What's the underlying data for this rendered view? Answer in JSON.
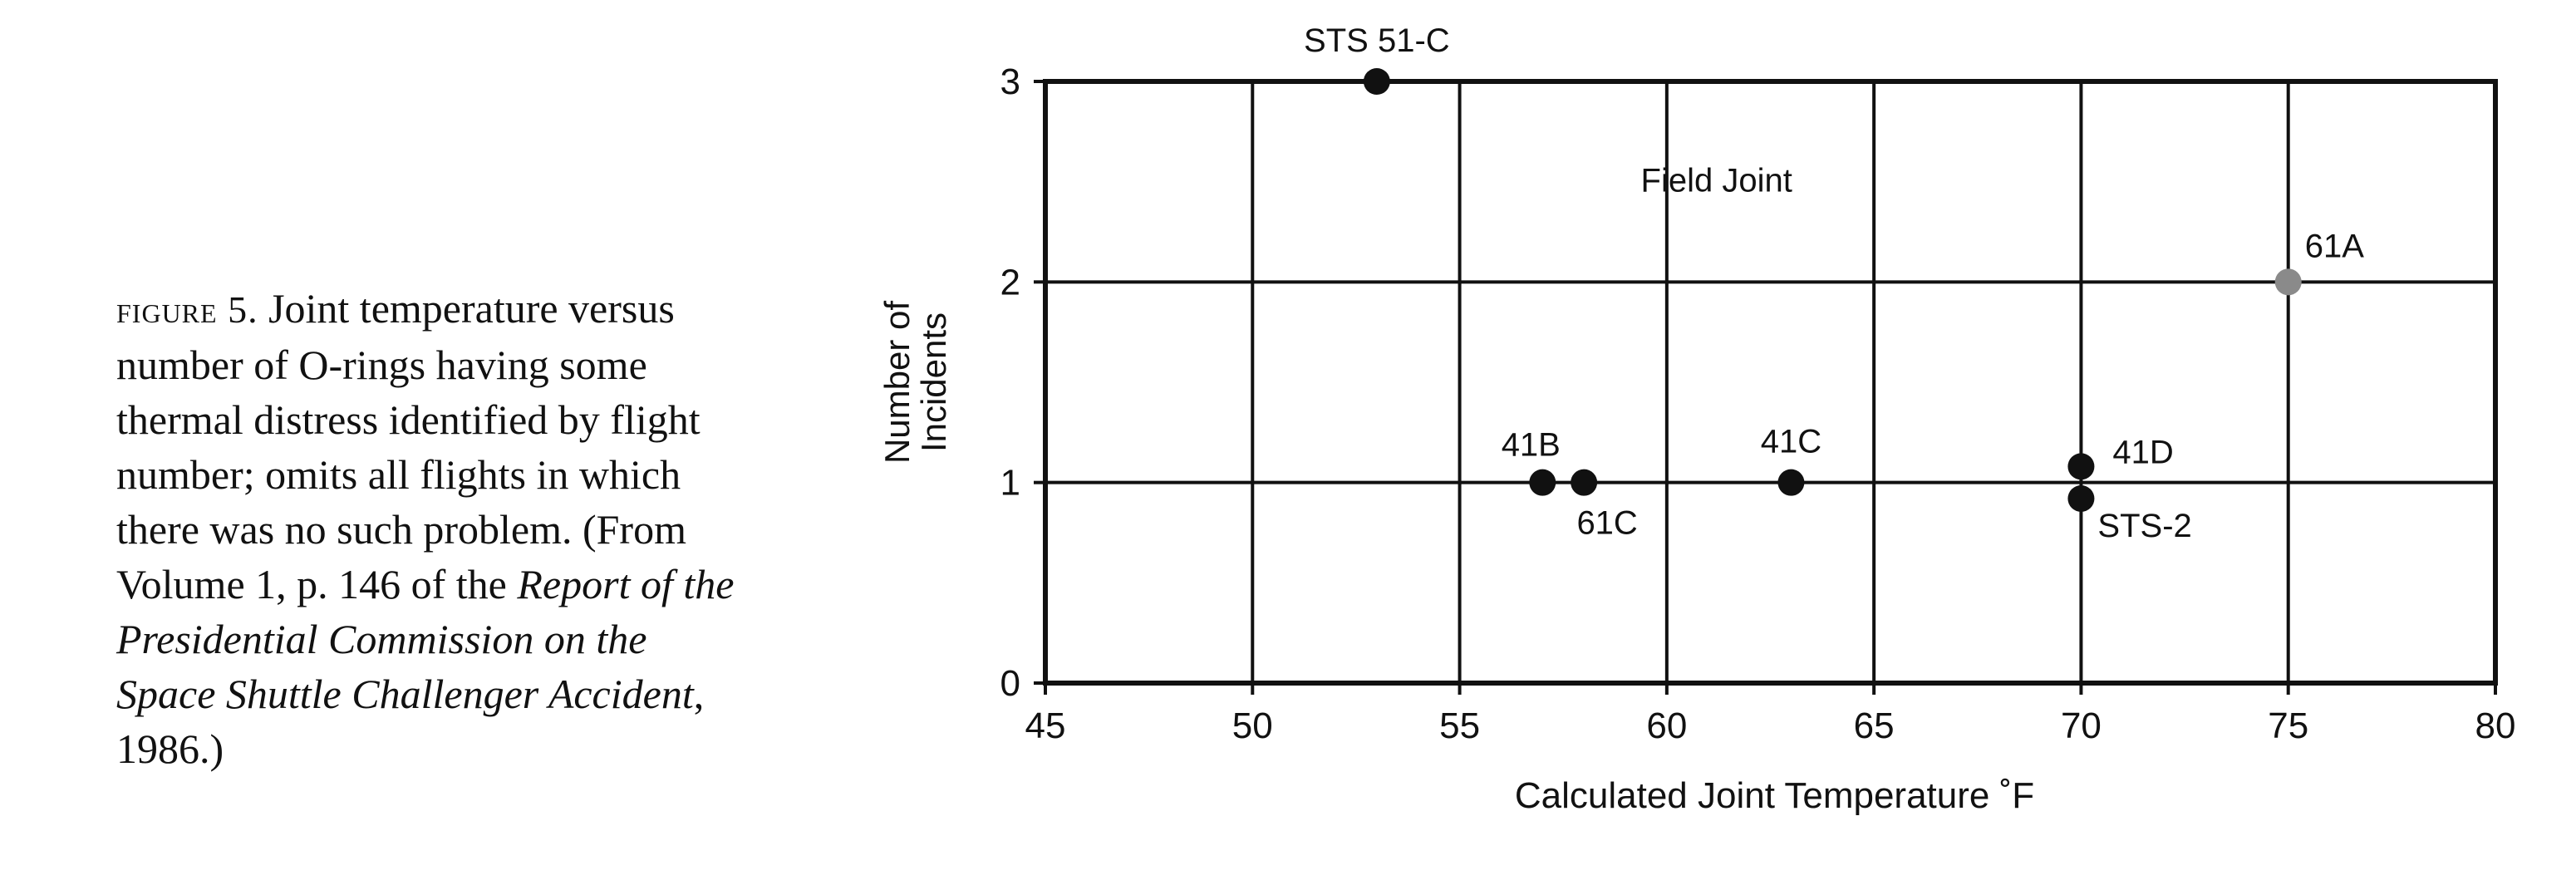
{
  "caption": {
    "lead": "figure 5.",
    "text1": " Joint temperature versus number of O-rings having some thermal distress identified by flight number; omits all flights in which there was no such problem. (From Volume 1, p. 146 of the ",
    "report": "Report of the Presidential Commission on the Space Shuttle Challenger Accident",
    "text2": ", 1986.)"
  },
  "chart_data": {
    "type": "scatter",
    "xlabel": "Calculated Joint Temperature ˚F",
    "ylabel_lines": [
      "Number of",
      "Incidents"
    ],
    "annotation": "Field  Joint",
    "xlim": [
      45,
      80
    ],
    "ylim": [
      0,
      3
    ],
    "xticks": [
      45,
      50,
      55,
      60,
      65,
      70,
      75,
      80
    ],
    "yticks": [
      0,
      1,
      2,
      3
    ],
    "grid": true,
    "points": [
      {
        "label": "STS  51-C",
        "x": 53,
        "y": 3,
        "color": "#111111",
        "label_pos": "above"
      },
      {
        "label": "61A",
        "x": 75,
        "y": 2,
        "color": "#8a8a8a",
        "label_pos": "above-right"
      },
      {
        "label": "41B",
        "x": 57,
        "y": 1,
        "color": "#111111",
        "label_pos": "above-left"
      },
      {
        "label": "61C",
        "x": 58,
        "y": 1,
        "color": "#111111",
        "label_pos": "below-right"
      },
      {
        "label": "41C",
        "x": 63,
        "y": 1,
        "color": "#111111",
        "label_pos": "above"
      },
      {
        "label": "41D",
        "x": 70,
        "y": 1,
        "color": "#111111",
        "label_pos": "right-upper"
      },
      {
        "label": "STS-2",
        "x": 70,
        "y": 1,
        "color": "#111111",
        "label_pos": "right-lower"
      }
    ]
  }
}
